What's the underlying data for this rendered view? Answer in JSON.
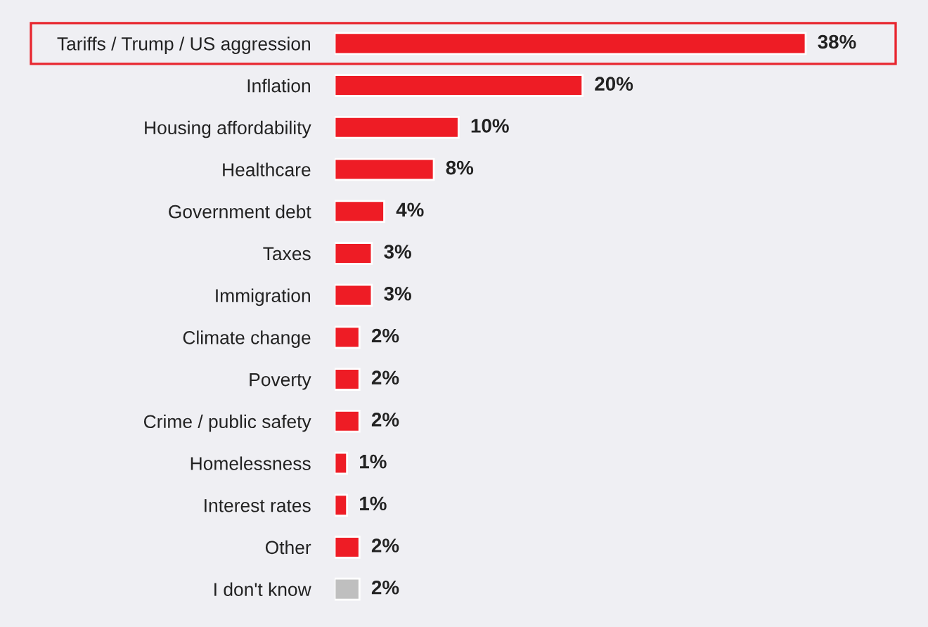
{
  "chart_data": {
    "type": "bar",
    "orientation": "horizontal",
    "categories": [
      "Tariffs / Trump / US aggression",
      "Inflation",
      "Housing affordability",
      "Healthcare",
      "Government debt",
      "Taxes",
      "Immigration",
      "Climate change",
      "Poverty",
      "Crime / public safety",
      "Homelessness",
      "Interest rates",
      "Other",
      "I don't know"
    ],
    "values": [
      38,
      20,
      10,
      8,
      4,
      3,
      3,
      2,
      2,
      2,
      1,
      1,
      2,
      2
    ],
    "colors": [
      "#ee1c25",
      "#ee1c25",
      "#ee1c25",
      "#ee1c25",
      "#ee1c25",
      "#ee1c25",
      "#ee1c25",
      "#ee1c25",
      "#ee1c25",
      "#ee1c25",
      "#ee1c25",
      "#ee1c25",
      "#ee1c25",
      "#bfbfbf"
    ],
    "value_labels": [
      "38%",
      "20%",
      "10%",
      "8%",
      "4%",
      "3%",
      "3%",
      "2%",
      "2%",
      "2%",
      "1%",
      "1%",
      "2%",
      "2%"
    ],
    "grid": false,
    "legend": false
  }
}
